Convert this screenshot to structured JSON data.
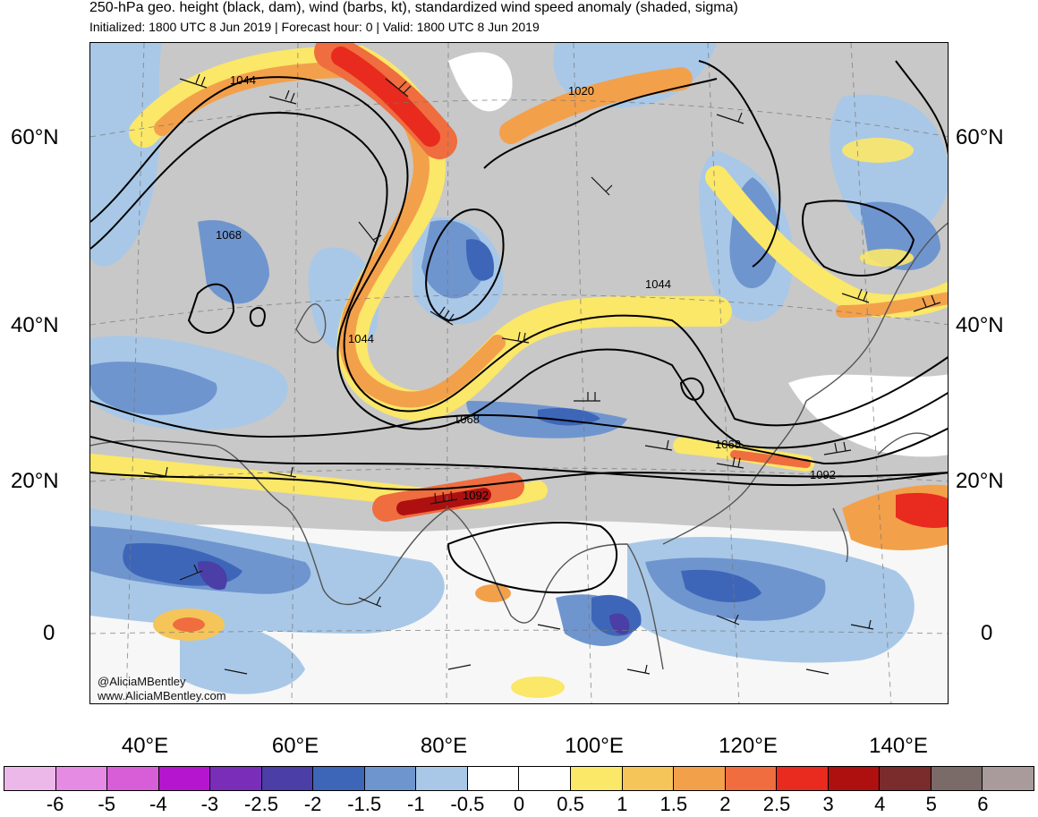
{
  "header": {
    "title": "250-hPa geo. height (black, dam), wind (barbs, kt), standardized wind speed anomaly (shaded, sigma)",
    "subtitle": "Initialized: 1800 UTC 8 Jun 2019 | Forecast hour: 0 | Valid: 1800 UTC 8 Jun 2019"
  },
  "map": {
    "lat_labels": [
      "60°N",
      "40°N",
      "20°N",
      "0"
    ],
    "lon_labels": [
      "40°E",
      "60°E",
      "80°E",
      "100°E",
      "120°E",
      "140°E"
    ],
    "contour_labels": [
      "1044",
      "1020",
      "1068",
      "1044",
      "1044",
      "1068",
      "1068",
      "1092",
      "1092"
    ],
    "credits": [
      "@AliciaMBentley",
      "www.AliciaMBentley.com"
    ]
  },
  "colorbar": {
    "colors": [
      "#ecb8ea",
      "#e58be4",
      "#d85ed8",
      "#b515cf",
      "#7a2db8",
      "#4b3ea6",
      "#3e66b8",
      "#6f95cf",
      "#a9c8e7",
      "#ffffff",
      "#ffffff",
      "#fbe768",
      "#f5c55a",
      "#f3a04b",
      "#ef6d3e",
      "#e82b1e",
      "#ae1010",
      "#7a2b2b",
      "#7a6a68",
      "#a99b9b"
    ],
    "labels": [
      "-6",
      "-5",
      "-4",
      "-3",
      "-2.5",
      "-2",
      "-1.5",
      "-1",
      "-0.5",
      "0",
      "0.5",
      "1",
      "1.5",
      "2",
      "2.5",
      "3",
      "4",
      "5",
      "6"
    ]
  },
  "colors": {
    "land_gray": "#c8c8c8",
    "contour": "#000000",
    "blue_light": "#a9c8e7",
    "blue_mid": "#6f95cf",
    "blue_dark": "#3e66b8",
    "yellow": "#fbe768",
    "orange": "#f3a04b",
    "red": "#e82b1e"
  }
}
